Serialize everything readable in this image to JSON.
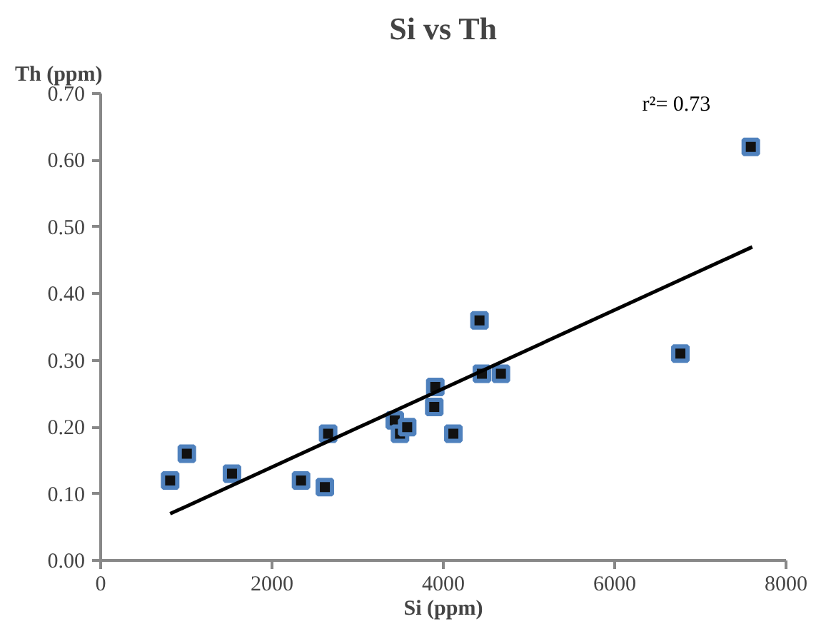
{
  "chart_data": {
    "type": "scatter",
    "title": "Si vs Th",
    "xlabel": "Si (ppm)",
    "ylabel": "Th (ppm)",
    "annotations": [
      "r²= 0.73"
    ],
    "xlim": [
      0,
      8000
    ],
    "xticks": [
      0,
      2000,
      4000,
      6000,
      8000
    ],
    "ylim": [
      0,
      0.7
    ],
    "yticks": [
      {
        "value": 0,
        "label": "0.00"
      },
      {
        "value": 0.1,
        "label": "0.10"
      },
      {
        "value": 0.2,
        "label": "0.20"
      },
      {
        "value": 0.3,
        "label": "0.30"
      },
      {
        "value": 0.4,
        "label": "0.40"
      },
      {
        "value": 0.5,
        "label": "0.50"
      },
      {
        "value": 0.6,
        "label": "0.60"
      },
      {
        "value": 0.7,
        "label": "0.70"
      }
    ],
    "grid": false,
    "series": [
      {
        "marker": "square",
        "color": "#111111",
        "x": [
          811,
          1006,
          1533,
          2339,
          2617,
          2655,
          3433,
          3494,
          3578,
          3906,
          3894,
          4117,
          4422,
          4450,
          4672,
          6767,
          7589
        ],
        "values": [
          0.12,
          0.16,
          0.13,
          0.12,
          0.11,
          0.19,
          0.21,
          0.19,
          0.2,
          0.26,
          0.23,
          0.19,
          0.36,
          0.28,
          0.28,
          0.31,
          0.62
        ]
      },
      {
        "type": "line",
        "marker": "none",
        "color": "#000000",
        "line_style": "solid",
        "x": [
          811,
          7606
        ],
        "values": [
          0.07,
          0.47
        ]
      }
    ]
  }
}
